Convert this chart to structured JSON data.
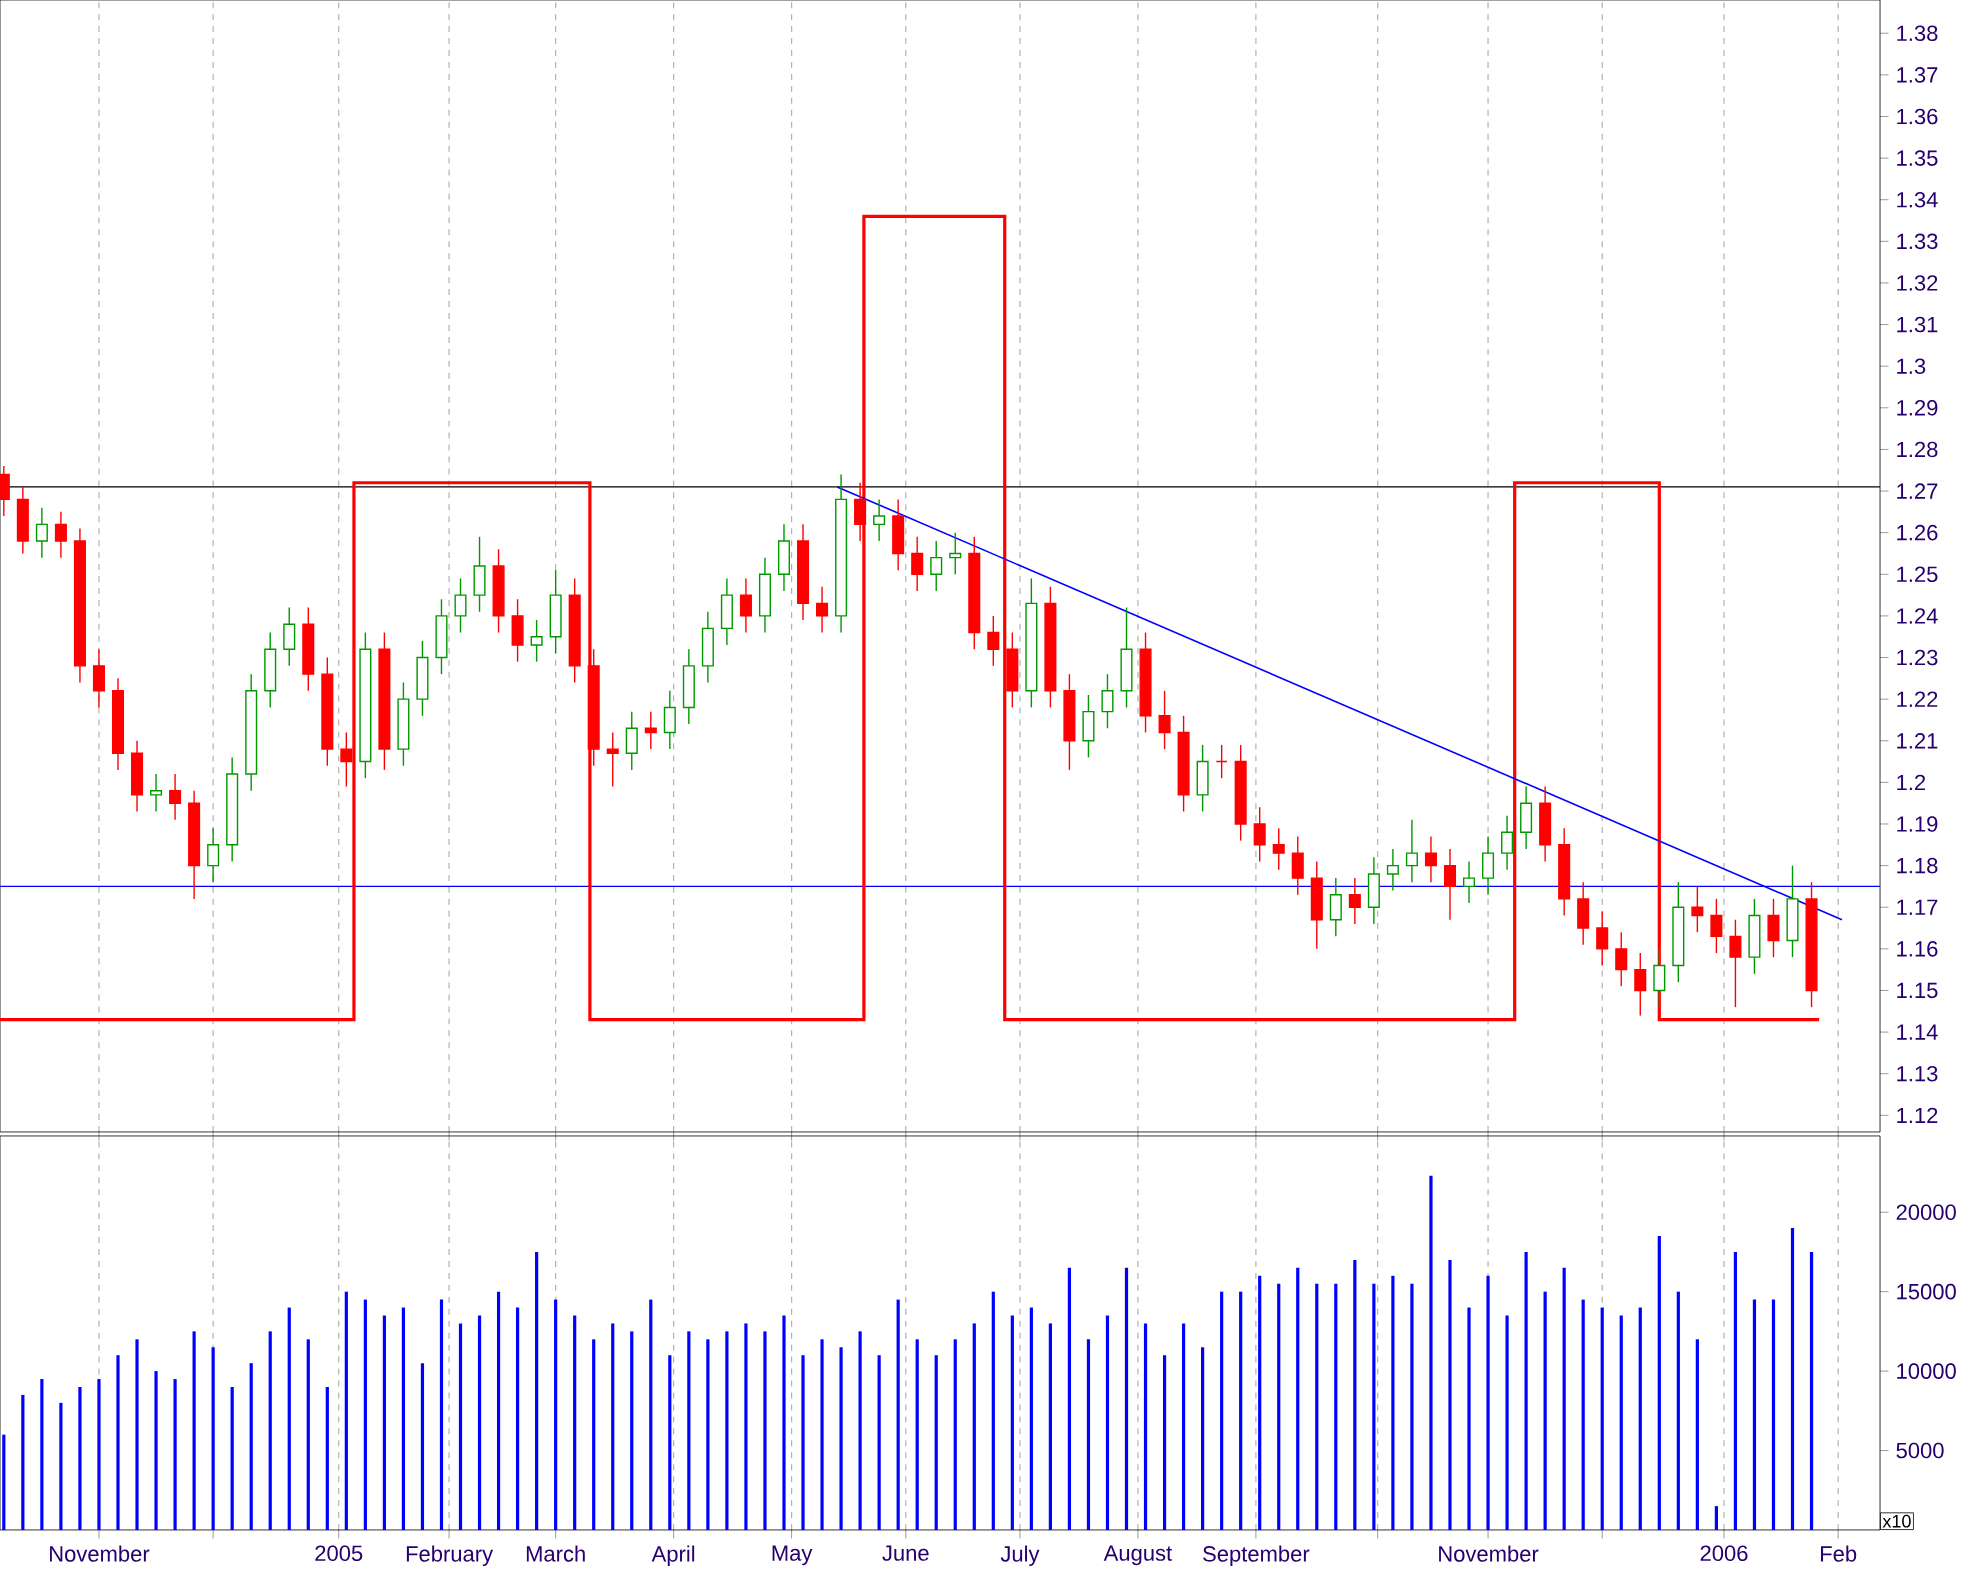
{
  "chart_data": [
    {
      "type": "candlestick",
      "xlim": [
        "2004-10-06",
        "2006-02-12"
      ],
      "ylim": [
        1.116,
        1.388
      ],
      "yticks": [
        1.12,
        1.13,
        1.14,
        1.15,
        1.16,
        1.17,
        1.18,
        1.19,
        1.2,
        1.21,
        1.22,
        1.23,
        1.24,
        1.25,
        1.26,
        1.27,
        1.28,
        1.29,
        1.3,
        1.31,
        1.32,
        1.33,
        1.34,
        1.35,
        1.36,
        1.37,
        1.38
      ],
      "xticks": [
        {
          "value": "2004-11-01",
          "label": null
        },
        {
          "value": "2004-12-01",
          "label": null
        },
        {
          "value": "2005-01-03",
          "label": null
        },
        {
          "value": "2005-02-01",
          "label": null
        },
        {
          "value": "2005-03-01",
          "label": null
        },
        {
          "value": "2005-04-01",
          "label": null
        },
        {
          "value": "2005-05-02",
          "label": null
        },
        {
          "value": "2005-06-01",
          "label": null
        },
        {
          "value": "2005-07-01",
          "label": null
        },
        {
          "value": "2005-08-01",
          "label": null
        },
        {
          "value": "2005-09-01",
          "label": null
        },
        {
          "value": "2005-10-03",
          "label": null
        },
        {
          "value": "2005-11-01",
          "label": null
        },
        {
          "value": "2005-12-01",
          "label": null
        },
        {
          "value": "2006-01-02",
          "label": null
        },
        {
          "value": "2006-02-01",
          "label": null
        }
      ],
      "grid": "x",
      "tick_labels": "y",
      "ref_lines": [
        {
          "axis": "y",
          "value": 1.271,
          "color": "#000000"
        },
        {
          "axis": "y",
          "value": 1.175,
          "color": "#0000ff"
        }
      ],
      "series": [
        {
          "type": "step",
          "color": "#ff0000",
          "x": [
            "2004-10-06",
            "2005-01-07",
            "2005-03-10",
            "2005-05-21",
            "2005-06-27",
            "2005-11-08",
            "2005-12-16",
            "2006-01-27"
          ],
          "values": [
            1.143,
            1.272,
            1.143,
            1.336,
            1.143,
            1.272,
            1.143,
            1.143
          ]
        },
        {
          "type": "line",
          "color": "#0000ff",
          "x": [
            "2005-05-14",
            "2006-02-02"
          ],
          "values": [
            1.271,
            1.167
          ]
        },
        {
          "type": "candlestick",
          "x": [
            "2004-10-07",
            "2004-10-12",
            "2004-10-17",
            "2004-10-22",
            "2004-10-27",
            "2004-11-01",
            "2004-11-06",
            "2004-11-11",
            "2004-11-16",
            "2004-11-21",
            "2004-11-26",
            "2004-12-01",
            "2004-12-06",
            "2004-12-11",
            "2004-12-16",
            "2004-12-21",
            "2004-12-26",
            "2004-12-31",
            "2005-01-05",
            "2005-01-10",
            "2005-01-15",
            "2005-01-20",
            "2005-01-25",
            "2005-01-30",
            "2005-02-04",
            "2005-02-09",
            "2005-02-14",
            "2005-02-19",
            "2005-02-24",
            "2005-03-01",
            "2005-03-06",
            "2005-03-11",
            "2005-03-16",
            "2005-03-21",
            "2005-03-26",
            "2005-03-31",
            "2005-04-05",
            "2005-04-10",
            "2005-04-15",
            "2005-04-20",
            "2005-04-25",
            "2005-04-30",
            "2005-05-05",
            "2005-05-10",
            "2005-05-15",
            "2005-05-20",
            "2005-05-25",
            "2005-05-30",
            "2005-06-04",
            "2005-06-09",
            "2005-06-14",
            "2005-06-19",
            "2005-06-24",
            "2005-06-29",
            "2005-07-04",
            "2005-07-09",
            "2005-07-14",
            "2005-07-19",
            "2005-07-24",
            "2005-07-29",
            "2005-08-03",
            "2005-08-08",
            "2005-08-13",
            "2005-08-18",
            "2005-08-23",
            "2005-08-28",
            "2005-09-02",
            "2005-09-07",
            "2005-09-12",
            "2005-09-17",
            "2005-09-22",
            "2005-09-27",
            "2005-10-02",
            "2005-10-07",
            "2005-10-12",
            "2005-10-17",
            "2005-10-22",
            "2005-10-27",
            "2005-11-01",
            "2005-11-06",
            "2005-11-11",
            "2005-11-16",
            "2005-11-21",
            "2005-11-26",
            "2005-12-01",
            "2005-12-06",
            "2005-12-11",
            "2005-12-16",
            "2005-12-21",
            "2005-12-26",
            "2005-12-31",
            "2006-01-05",
            "2006-01-10",
            "2006-01-15",
            "2006-01-20",
            "2006-01-25"
          ],
          "ohlc": [
            [
              1.274,
              1.276,
              1.264,
              1.268
            ],
            [
              1.268,
              1.271,
              1.255,
              1.258
            ],
            [
              1.258,
              1.266,
              1.254,
              1.262
            ],
            [
              1.262,
              1.265,
              1.254,
              1.258
            ],
            [
              1.258,
              1.261,
              1.224,
              1.228
            ],
            [
              1.228,
              1.232,
              1.218,
              1.222
            ],
            [
              1.222,
              1.225,
              1.203,
              1.207
            ],
            [
              1.207,
              1.21,
              1.193,
              1.197
            ],
            [
              1.197,
              1.202,
              1.193,
              1.198
            ],
            [
              1.198,
              1.202,
              1.191,
              1.195
            ],
            [
              1.195,
              1.198,
              1.172,
              1.18
            ],
            [
              1.18,
              1.189,
              1.176,
              1.185
            ],
            [
              1.185,
              1.206,
              1.181,
              1.202
            ],
            [
              1.202,
              1.226,
              1.198,
              1.222
            ],
            [
              1.222,
              1.236,
              1.218,
              1.232
            ],
            [
              1.232,
              1.242,
              1.228,
              1.238
            ],
            [
              1.238,
              1.242,
              1.222,
              1.226
            ],
            [
              1.226,
              1.23,
              1.204,
              1.208
            ],
            [
              1.208,
              1.212,
              1.199,
              1.205
            ],
            [
              1.205,
              1.236,
              1.201,
              1.232
            ],
            [
              1.232,
              1.236,
              1.203,
              1.208
            ],
            [
              1.208,
              1.224,
              1.204,
              1.22
            ],
            [
              1.22,
              1.234,
              1.216,
              1.23
            ],
            [
              1.23,
              1.244,
              1.226,
              1.24
            ],
            [
              1.24,
              1.249,
              1.236,
              1.245
            ],
            [
              1.245,
              1.259,
              1.241,
              1.252
            ],
            [
              1.252,
              1.256,
              1.236,
              1.24
            ],
            [
              1.24,
              1.244,
              1.229,
              1.233
            ],
            [
              1.233,
              1.239,
              1.229,
              1.235
            ],
            [
              1.235,
              1.251,
              1.231,
              1.245
            ],
            [
              1.245,
              1.249,
              1.224,
              1.228
            ],
            [
              1.228,
              1.232,
              1.204,
              1.208
            ],
            [
              1.208,
              1.212,
              1.199,
              1.207
            ],
            [
              1.207,
              1.217,
              1.203,
              1.213
            ],
            [
              1.213,
              1.217,
              1.208,
              1.212
            ],
            [
              1.212,
              1.222,
              1.208,
              1.218
            ],
            [
              1.218,
              1.232,
              1.214,
              1.228
            ],
            [
              1.228,
              1.241,
              1.224,
              1.237
            ],
            [
              1.237,
              1.249,
              1.233,
              1.245
            ],
            [
              1.245,
              1.249,
              1.236,
              1.24
            ],
            [
              1.24,
              1.254,
              1.236,
              1.25
            ],
            [
              1.25,
              1.262,
              1.246,
              1.258
            ],
            [
              1.258,
              1.262,
              1.239,
              1.243
            ],
            [
              1.243,
              1.247,
              1.236,
              1.24
            ],
            [
              1.24,
              1.274,
              1.236,
              1.268
            ],
            [
              1.268,
              1.272,
              1.258,
              1.262
            ],
            [
              1.262,
              1.268,
              1.258,
              1.264
            ],
            [
              1.264,
              1.268,
              1.251,
              1.255
            ],
            [
              1.255,
              1.259,
              1.246,
              1.25
            ],
            [
              1.25,
              1.258,
              1.246,
              1.254
            ],
            [
              1.254,
              1.26,
              1.25,
              1.255
            ],
            [
              1.255,
              1.259,
              1.232,
              1.236
            ],
            [
              1.236,
              1.24,
              1.228,
              1.232
            ],
            [
              1.232,
              1.236,
              1.218,
              1.222
            ],
            [
              1.222,
              1.249,
              1.218,
              1.243
            ],
            [
              1.243,
              1.247,
              1.218,
              1.222
            ],
            [
              1.222,
              1.226,
              1.203,
              1.21
            ],
            [
              1.21,
              1.221,
              1.206,
              1.217
            ],
            [
              1.217,
              1.226,
              1.213,
              1.222
            ],
            [
              1.222,
              1.242,
              1.218,
              1.232
            ],
            [
              1.232,
              1.236,
              1.212,
              1.216
            ],
            [
              1.216,
              1.222,
              1.208,
              1.212
            ],
            [
              1.212,
              1.216,
              1.193,
              1.197
            ],
            [
              1.197,
              1.209,
              1.193,
              1.205
            ],
            [
              1.205,
              1.209,
              1.201,
              1.205
            ],
            [
              1.205,
              1.209,
              1.186,
              1.19
            ],
            [
              1.19,
              1.194,
              1.181,
              1.185
            ],
            [
              1.185,
              1.189,
              1.179,
              1.183
            ],
            [
              1.183,
              1.187,
              1.173,
              1.177
            ],
            [
              1.177,
              1.181,
              1.16,
              1.167
            ],
            [
              1.167,
              1.177,
              1.163,
              1.173
            ],
            [
              1.173,
              1.177,
              1.166,
              1.17
            ],
            [
              1.17,
              1.182,
              1.166,
              1.178
            ],
            [
              1.178,
              1.184,
              1.174,
              1.18
            ],
            [
              1.18,
              1.191,
              1.176,
              1.183
            ],
            [
              1.183,
              1.187,
              1.176,
              1.18
            ],
            [
              1.18,
              1.184,
              1.167,
              1.175
            ],
            [
              1.175,
              1.181,
              1.171,
              1.177
            ],
            [
              1.177,
              1.187,
              1.173,
              1.183
            ],
            [
              1.183,
              1.192,
              1.179,
              1.188
            ],
            [
              1.188,
              1.199,
              1.184,
              1.195
            ],
            [
              1.195,
              1.199,
              1.181,
              1.185
            ],
            [
              1.185,
              1.189,
              1.168,
              1.172
            ],
            [
              1.172,
              1.176,
              1.161,
              1.165
            ],
            [
              1.165,
              1.169,
              1.156,
              1.16
            ],
            [
              1.16,
              1.164,
              1.151,
              1.155
            ],
            [
              1.155,
              1.159,
              1.144,
              1.15
            ],
            [
              1.15,
              1.16,
              1.146,
              1.156
            ],
            [
              1.156,
              1.176,
              1.152,
              1.17
            ],
            [
              1.17,
              1.175,
              1.164,
              1.168
            ],
            [
              1.168,
              1.172,
              1.159,
              1.163
            ],
            [
              1.163,
              1.167,
              1.146,
              1.158
            ],
            [
              1.158,
              1.172,
              1.154,
              1.168
            ],
            [
              1.168,
              1.172,
              1.158,
              1.162
            ],
            [
              1.162,
              1.18,
              1.158,
              1.172
            ],
            [
              1.172,
              1.176,
              1.146,
              1.15
            ]
          ],
          "colors": [
            "#ff0000",
            "#ff0000",
            "#009900",
            "#ff0000",
            "#ff0000",
            "#ff0000",
            "#ff0000",
            "#ff0000",
            "#009900",
            "#ff0000",
            "#ff0000",
            "#009900",
            "#009900",
            "#009900",
            "#009900",
            "#009900",
            "#ff0000",
            "#ff0000",
            "#ff0000",
            "#009900",
            "#ff0000",
            "#009900",
            "#009900",
            "#009900",
            "#009900",
            "#009900",
            "#ff0000",
            "#ff0000",
            "#009900",
            "#009900",
            "#ff0000",
            "#ff0000",
            "#ff0000",
            "#009900",
            "#ff0000",
            "#009900",
            "#009900",
            "#009900",
            "#009900",
            "#ff0000",
            "#009900",
            "#009900",
            "#ff0000",
            "#ff0000",
            "#009900",
            "#ff0000",
            "#009900",
            "#ff0000",
            "#ff0000",
            "#009900",
            "#009900",
            "#ff0000",
            "#ff0000",
            "#ff0000",
            "#009900",
            "#ff0000",
            "#ff0000",
            "#009900",
            "#009900",
            "#009900",
            "#ff0000",
            "#ff0000",
            "#ff0000",
            "#009900",
            "#ff0000",
            "#ff0000",
            "#ff0000",
            "#ff0000",
            "#ff0000",
            "#ff0000",
            "#009900",
            "#ff0000",
            "#009900",
            "#009900",
            "#009900",
            "#ff0000",
            "#ff0000",
            "#009900",
            "#009900",
            "#009900",
            "#009900",
            "#ff0000",
            "#ff0000",
            "#ff0000",
            "#ff0000",
            "#ff0000",
            "#ff0000",
            "#009900",
            "#009900",
            "#ff0000",
            "#ff0000",
            "#ff0000",
            "#009900",
            "#ff0000",
            "#009900",
            "#ff0000"
          ]
        }
      ]
    },
    {
      "type": "bar",
      "color": "#0000ff",
      "xlim": [
        "2004-10-06",
        "2006-02-12"
      ],
      "ylim": [
        0,
        24800
      ],
      "yticks": [
        5000,
        10000,
        15000,
        20000
      ],
      "xticks": [
        {
          "value": "2004-11-01",
          "label": "November"
        },
        {
          "value": "2004-12-01",
          "label": null
        },
        {
          "value": "2005-01-03",
          "label": "2005"
        },
        {
          "value": "2005-02-01",
          "label": "February"
        },
        {
          "value": "2005-03-01",
          "label": "March"
        },
        {
          "value": "2005-04-01",
          "label": "April"
        },
        {
          "value": "2005-05-02",
          "label": "May"
        },
        {
          "value": "2005-06-01",
          "label": "June"
        },
        {
          "value": "2005-07-01",
          "label": "July"
        },
        {
          "value": "2005-08-01",
          "label": "August"
        },
        {
          "value": "2005-09-01",
          "label": "September"
        },
        {
          "value": "2005-10-03",
          "label": null
        },
        {
          "value": "2005-11-01",
          "label": "November"
        },
        {
          "value": "2005-12-01",
          "label": null
        },
        {
          "value": "2006-01-02",
          "label": "2006"
        },
        {
          "value": "2006-02-01",
          "label": "Feb"
        }
      ],
      "grid": "x",
      "annotations": [
        "x10"
      ],
      "x": [
        "2004-10-07",
        "2004-10-12",
        "2004-10-17",
        "2004-10-22",
        "2004-10-27",
        "2004-11-01",
        "2004-11-06",
        "2004-11-11",
        "2004-11-16",
        "2004-11-21",
        "2004-11-26",
        "2004-12-01",
        "2004-12-06",
        "2004-12-11",
        "2004-12-16",
        "2004-12-21",
        "2004-12-26",
        "2004-12-31",
        "2005-01-05",
        "2005-01-10",
        "2005-01-15",
        "2005-01-20",
        "2005-01-25",
        "2005-01-30",
        "2005-02-04",
        "2005-02-09",
        "2005-02-14",
        "2005-02-19",
        "2005-02-24",
        "2005-03-01",
        "2005-03-06",
        "2005-03-11",
        "2005-03-16",
        "2005-03-21",
        "2005-03-26",
        "2005-03-31",
        "2005-04-05",
        "2005-04-10",
        "2005-04-15",
        "2005-04-20",
        "2005-04-25",
        "2005-04-30",
        "2005-05-05",
        "2005-05-10",
        "2005-05-15",
        "2005-05-20",
        "2005-05-25",
        "2005-05-30",
        "2005-06-04",
        "2005-06-09",
        "2005-06-14",
        "2005-06-19",
        "2005-06-24",
        "2005-06-29",
        "2005-07-04",
        "2005-07-09",
        "2005-07-14",
        "2005-07-19",
        "2005-07-24",
        "2005-07-29",
        "2005-08-03",
        "2005-08-08",
        "2005-08-13",
        "2005-08-18",
        "2005-08-23",
        "2005-08-28",
        "2005-09-02",
        "2005-09-07",
        "2005-09-12",
        "2005-09-17",
        "2005-09-22",
        "2005-09-27",
        "2005-10-02",
        "2005-10-07",
        "2005-10-12",
        "2005-10-17",
        "2005-10-22",
        "2005-10-27",
        "2005-11-01",
        "2005-11-06",
        "2005-11-11",
        "2005-11-16",
        "2005-11-21",
        "2005-11-26",
        "2005-12-01",
        "2005-12-06",
        "2005-12-11",
        "2005-12-16",
        "2005-12-21",
        "2005-12-26",
        "2005-12-31",
        "2006-01-05",
        "2006-01-10",
        "2006-01-15",
        "2006-01-20",
        "2006-01-25"
      ],
      "values": [
        6000,
        8500,
        9500,
        8000,
        9000,
        9500,
        11000,
        12000,
        10000,
        9500,
        12500,
        11500,
        9000,
        10500,
        12500,
        14000,
        12000,
        9000,
        15000,
        14500,
        13500,
        14000,
        10500,
        14500,
        13000,
        13500,
        15000,
        14000,
        17500,
        14500,
        13500,
        12000,
        13000,
        12500,
        14500,
        11000,
        12500,
        12000,
        12500,
        13000,
        12500,
        13500,
        11000,
        12000,
        11500,
        12500,
        11000,
        14500,
        12000,
        11000,
        12000,
        13000,
        15000,
        13500,
        14000,
        13000,
        16500,
        12000,
        13500,
        16500,
        13000,
        11000,
        13000,
        11500,
        15000,
        15000,
        16000,
        15500,
        16500,
        15500,
        15500,
        17000,
        15500,
        16000,
        15500,
        22300,
        17000,
        14000,
        16000,
        13500,
        17500,
        15000,
        16500,
        14500,
        14000,
        13500,
        14000,
        18500,
        15000,
        12000,
        1500,
        17500,
        14500,
        14500,
        19000,
        17500
      ]
    }
  ]
}
